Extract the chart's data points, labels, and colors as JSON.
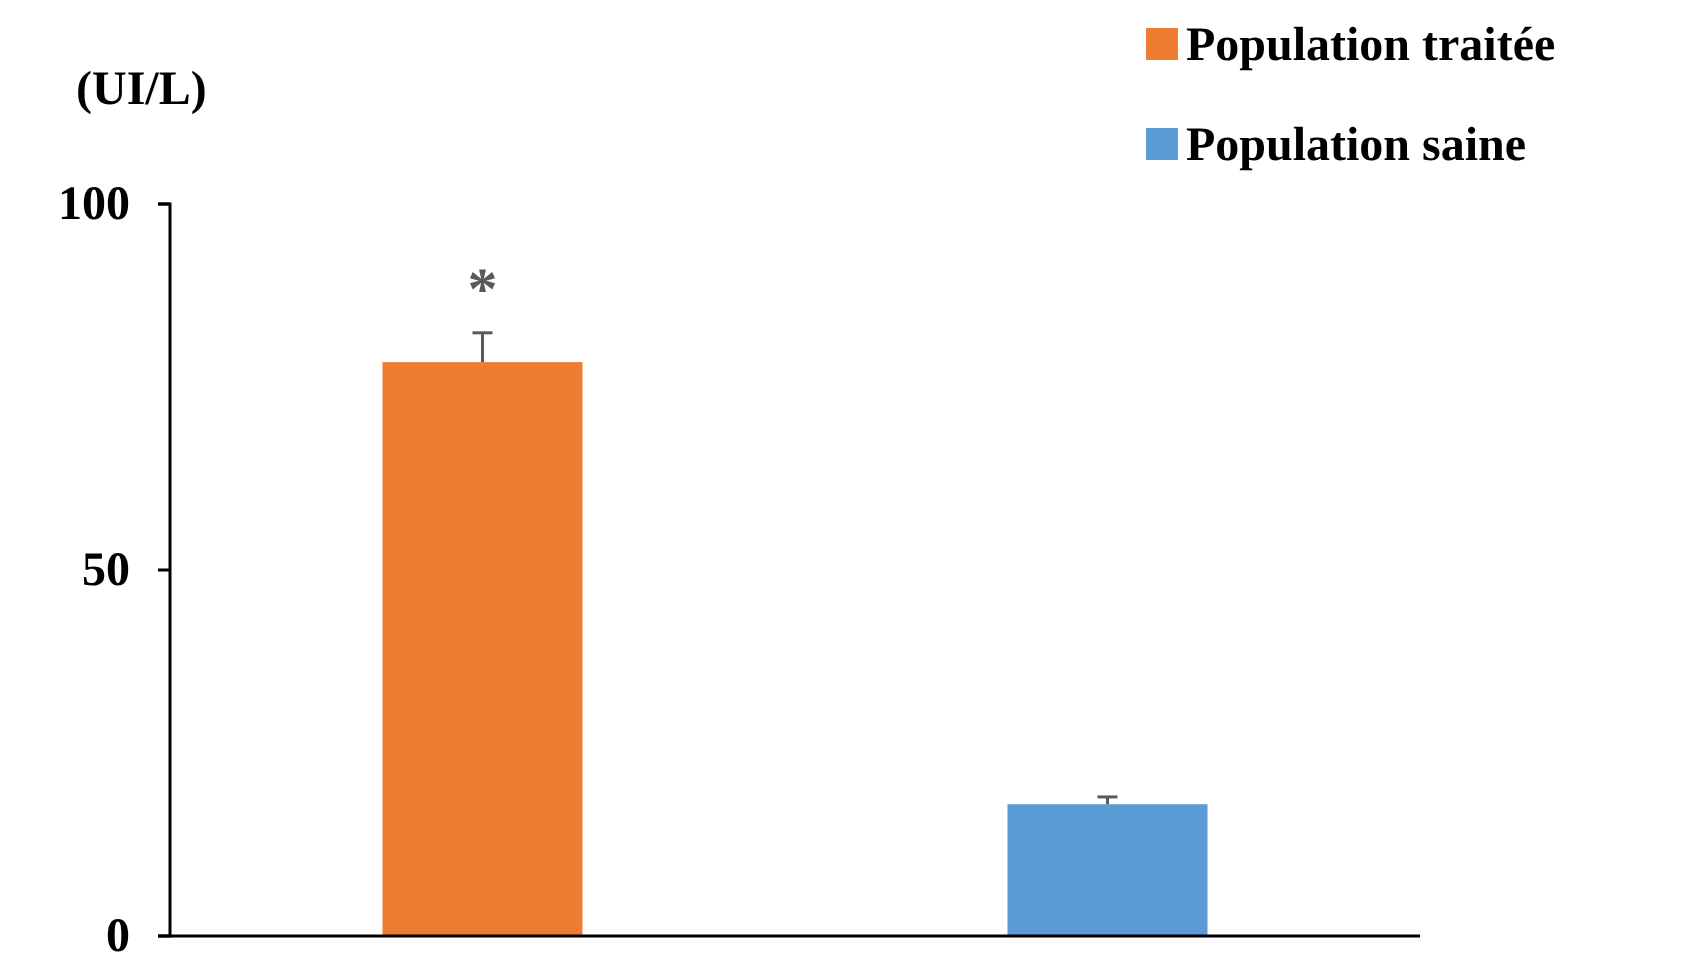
{
  "chart_data": {
    "type": "bar",
    "ylabel": "(UI/L)",
    "categories": [
      null,
      null
    ],
    "series": [
      {
        "name": "Population traitée",
        "color": "#ed7d31",
        "values": [
          78.4,
          null
        ],
        "errors": [
          [
            78.4,
            82.4
          ],
          null
        ]
      },
      {
        "name": "Population saine",
        "color": "#5b9bd5",
        "values": [
          null,
          18
        ],
        "errors": [
          null,
          [
            18,
            19
          ]
        ]
      }
    ],
    "ylim": [
      0,
      100
    ],
    "yticks": [
      0,
      50,
      100
    ],
    "grid": false,
    "legend": "top right",
    "annotations": [
      "*"
    ]
  }
}
